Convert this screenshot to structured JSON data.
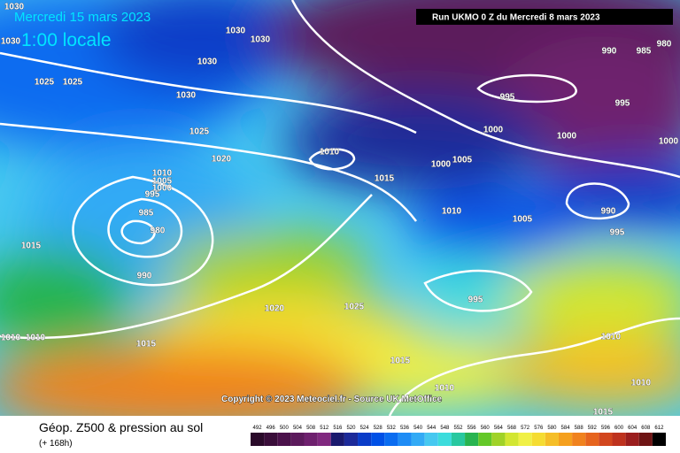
{
  "header": {
    "date": "Mercredi 15 mars 2023",
    "time": "1:00 locale",
    "run": "Run UKMO 0 Z du Mercredi 8 mars 2023"
  },
  "copyright": "Copyright © 2023 Meteociel.fr - Source UK MetOffice",
  "footer": {
    "title": "Géop. Z500 & pression au sol",
    "subtitle": "(+ 168h)"
  },
  "legend": {
    "values": [
      492,
      496,
      500,
      504,
      508,
      512,
      516,
      520,
      524,
      528,
      532,
      536,
      540,
      544,
      548,
      552,
      556,
      560,
      564,
      568,
      572,
      576,
      580,
      584,
      588,
      592,
      596,
      600,
      604,
      608,
      612
    ],
    "colors": [
      "#2a0a2a",
      "#3a0e3a",
      "#4b124b",
      "#5c1a5c",
      "#6e206e",
      "#80287f",
      "#1a1a6e",
      "#1c2a99",
      "#0a3cc8",
      "#0050e6",
      "#0a6cf0",
      "#1e8cf5",
      "#32aaf5",
      "#46c8f0",
      "#3cdcdc",
      "#28c8a0",
      "#28b450",
      "#64c828",
      "#a0d228",
      "#d2e632",
      "#f0f046",
      "#f5dc32",
      "#f5be28",
      "#f5a01e",
      "#f0821e",
      "#e6641e",
      "#d2461e",
      "#be321e",
      "#9b1e1e",
      "#6e1414",
      "#000000"
    ]
  },
  "isobar_labels": [
    "1030",
    "1030",
    "1030",
    "1030",
    "1025",
    "1025",
    "1030",
    "1030",
    "1025",
    "1020",
    "1010",
    "1010",
    "1005",
    "1000",
    "995",
    "985",
    "980",
    "990",
    "1015",
    "1020",
    "1025",
    "1015",
    "1010",
    "1010",
    "1015",
    "1010",
    "1005",
    "1000",
    "1005",
    "1000",
    "995",
    "1000",
    "990",
    "985",
    "980",
    "995",
    "1000",
    "990",
    "995",
    "995",
    "1015",
    "1010",
    "1010",
    "1010",
    "1015"
  ]
}
